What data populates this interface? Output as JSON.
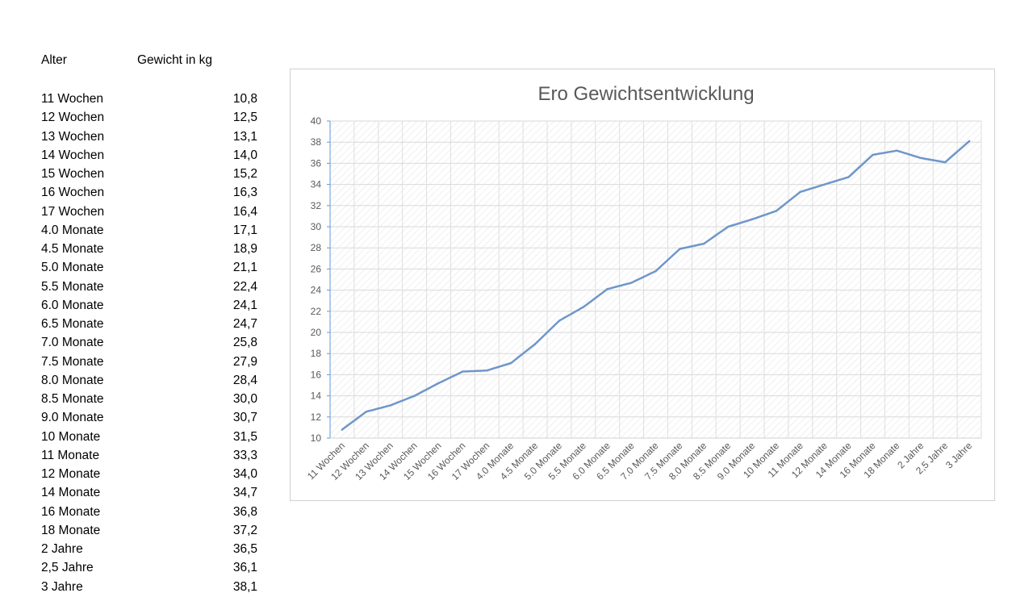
{
  "table": {
    "header_age": "Alter",
    "header_weight": "Gewicht in kg",
    "rows": [
      {
        "age": "11 Wochen",
        "weight": "10,8"
      },
      {
        "age": "12 Wochen",
        "weight": "12,5"
      },
      {
        "age": "13 Wochen",
        "weight": "13,1"
      },
      {
        "age": "14 Wochen",
        "weight": "14,0"
      },
      {
        "age": "15 Wochen",
        "weight": "15,2"
      },
      {
        "age": "16 Wochen",
        "weight": "16,3"
      },
      {
        "age": "17 Wochen",
        "weight": "16,4"
      },
      {
        "age": "4.0 Monate",
        "weight": "17,1"
      },
      {
        "age": "4.5 Monate",
        "weight": "18,9"
      },
      {
        "age": "5.0 Monate",
        "weight": "21,1"
      },
      {
        "age": "5.5 Monate",
        "weight": "22,4"
      },
      {
        "age": "6.0 Monate",
        "weight": "24,1"
      },
      {
        "age": "6.5 Monate",
        "weight": "24,7"
      },
      {
        "age": "7.0 Monate",
        "weight": "25,8"
      },
      {
        "age": "7.5 Monate",
        "weight": "27,9"
      },
      {
        "age": "8.0 Monate",
        "weight": "28,4"
      },
      {
        "age": "8.5 Monate",
        "weight": "30,0"
      },
      {
        "age": "9.0 Monate",
        "weight": "30,7"
      },
      {
        "age": "10 Monate",
        "weight": "31,5"
      },
      {
        "age": "11 Monate",
        "weight": "33,3"
      },
      {
        "age": "12 Monate",
        "weight": "34,0"
      },
      {
        "age": "14 Monate",
        "weight": "34,7"
      },
      {
        "age": "16 Monate",
        "weight": "36,8"
      },
      {
        "age": "18 Monate",
        "weight": "37,2"
      },
      {
        "age": "2 Jahre",
        "weight": "36,5"
      },
      {
        "age": "2,5 Jahre",
        "weight": "36,1"
      },
      {
        "age": "3 Jahre",
        "weight": "38,1"
      }
    ]
  },
  "chart_data": {
    "type": "line",
    "title": "Ero Gewichtsentwicklung",
    "xlabel": "",
    "ylabel": "",
    "ylim": [
      10,
      40
    ],
    "yticks": [
      "10",
      "12",
      "14",
      "16",
      "18",
      "20",
      "22",
      "24",
      "26",
      "28",
      "30",
      "32",
      "34",
      "36",
      "38",
      "40"
    ],
    "grid": true,
    "line_color": "#6f96c9",
    "categories": [
      "11 Wochen",
      "12 Wochen",
      "13 Wochen",
      "14 Wochen",
      "15 Wochen",
      "16 Wochen",
      "17 Wochen",
      "4.0 Monate",
      "4.5 Monate",
      "5.0 Monate",
      "5.5 Monate",
      "6.0 Monate",
      "6.5 Monate",
      "7.0 Monate",
      "7.5 Monate",
      "8.0 Monate",
      "8.5 Monate",
      "9.0 Monate",
      "10 Monate",
      "11 Monate",
      "12 Monate",
      "14 Monate",
      "16 Monate",
      "18 Monate",
      "2 Jahre",
      "2,5 Jahre",
      "3 Jahre"
    ],
    "values": [
      10.8,
      12.5,
      13.1,
      14.0,
      15.2,
      16.3,
      16.4,
      17.1,
      18.9,
      21.1,
      22.4,
      24.1,
      24.7,
      25.8,
      27.9,
      28.4,
      30.0,
      30.7,
      31.5,
      33.3,
      34.0,
      34.7,
      36.8,
      37.2,
      36.5,
      36.1,
      38.1
    ]
  }
}
